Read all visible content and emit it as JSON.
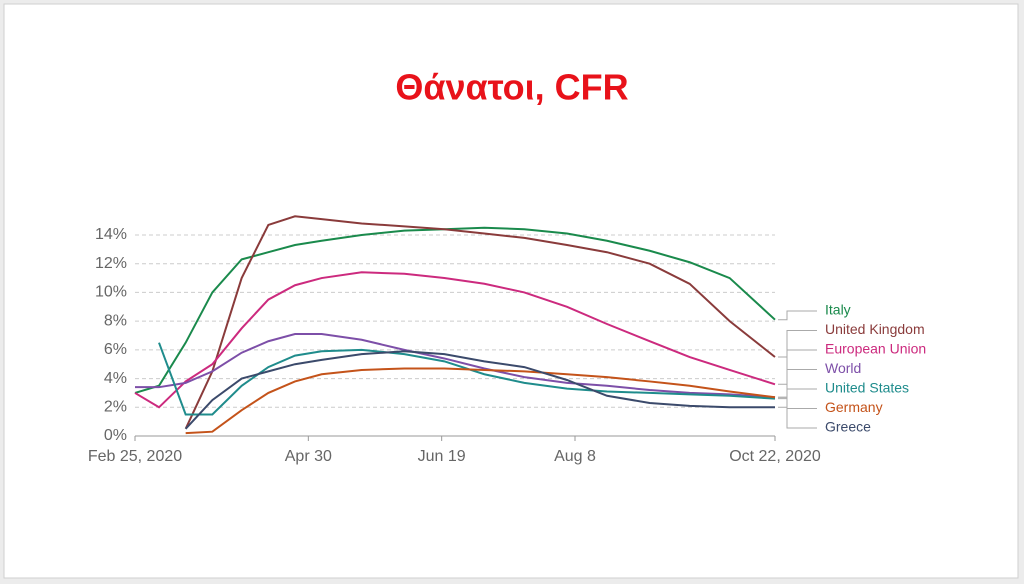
{
  "chart_data": {
    "type": "line",
    "title": "Θάνατοι, CFR",
    "x": [
      "2020-02-25",
      "2020-03-05",
      "2020-03-15",
      "2020-03-25",
      "2020-04-05",
      "2020-04-15",
      "2020-04-25",
      "2020-05-05",
      "2020-05-20",
      "2020-06-05",
      "2020-06-20",
      "2020-07-05",
      "2020-07-20",
      "2020-08-05",
      "2020-08-20",
      "2020-09-05",
      "2020-09-20",
      "2020-10-05",
      "2020-10-22"
    ],
    "xlim": [
      "2020-02-25",
      "2020-10-22"
    ],
    "xticks": [
      {
        "value": "2020-02-25",
        "label": "Feb 25, 2020"
      },
      {
        "value": "2020-04-30",
        "label": "Apr 30"
      },
      {
        "value": "2020-06-19",
        "label": "Jun 19"
      },
      {
        "value": "2020-08-08",
        "label": "Aug 8"
      },
      {
        "value": "2020-10-22",
        "label": "Oct 22, 2020"
      }
    ],
    "ylim": [
      0,
      15.6
    ],
    "yticks": [
      {
        "value": 0,
        "label": "0%"
      },
      {
        "value": 2,
        "label": "2%"
      },
      {
        "value": 4,
        "label": "4%"
      },
      {
        "value": 6,
        "label": "6%"
      },
      {
        "value": 8,
        "label": "8%"
      },
      {
        "value": 10,
        "label": "10%"
      },
      {
        "value": 12,
        "label": "12%"
      },
      {
        "value": 14,
        "label": "14%"
      }
    ],
    "grid": true,
    "series": [
      {
        "name": "Italy",
        "color": "#1a8a4c",
        "values": [
          3,
          3.5,
          6.5,
          10,
          12.3,
          12.8,
          13.3,
          13.6,
          14.0,
          14.3,
          14.4,
          14.5,
          14.4,
          14.1,
          13.6,
          12.9,
          12.1,
          11.0,
          8.1
        ]
      },
      {
        "name": "United Kingdom",
        "color": "#8a3b3b",
        "values": [
          null,
          null,
          0.5,
          4.5,
          11,
          14.7,
          15.3,
          15.1,
          14.8,
          14.6,
          14.4,
          14.1,
          13.8,
          13.3,
          12.8,
          12.0,
          10.6,
          8.0,
          5.5
        ]
      },
      {
        "name": "European Union",
        "color": "#cc2a7e",
        "values": [
          3,
          2,
          3.8,
          5,
          7.5,
          9.5,
          10.5,
          11.0,
          11.4,
          11.3,
          11.0,
          10.6,
          10.0,
          9.0,
          7.8,
          6.6,
          5.5,
          4.6,
          3.6
        ]
      },
      {
        "name": "World",
        "color": "#7d4fa8",
        "values": [
          3.4,
          3.4,
          3.7,
          4.5,
          5.8,
          6.6,
          7.1,
          7.1,
          6.7,
          6.0,
          5.4,
          4.7,
          4.1,
          3.7,
          3.5,
          3.2,
          3.0,
          2.9,
          2.7
        ]
      },
      {
        "name": "United States",
        "color": "#1f8c8c",
        "values": [
          null,
          6.5,
          1.5,
          1.5,
          3.5,
          4.8,
          5.6,
          5.9,
          6.0,
          5.7,
          5.2,
          4.3,
          3.7,
          3.3,
          3.1,
          3.0,
          2.9,
          2.8,
          2.6
        ]
      },
      {
        "name": "Germany",
        "color": "#c4531a",
        "values": [
          null,
          null,
          0.2,
          0.3,
          1.8,
          3.0,
          3.8,
          4.3,
          4.6,
          4.7,
          4.7,
          4.6,
          4.5,
          4.3,
          4.1,
          3.8,
          3.5,
          3.1,
          2.7
        ]
      },
      {
        "name": "Greece",
        "color": "#3b4a6b",
        "values": [
          null,
          null,
          0.5,
          2.5,
          4.0,
          4.5,
          5.0,
          5.3,
          5.7,
          5.9,
          5.7,
          5.2,
          4.8,
          3.9,
          2.8,
          2.3,
          2.1,
          2.0,
          2.0
        ]
      }
    ]
  }
}
